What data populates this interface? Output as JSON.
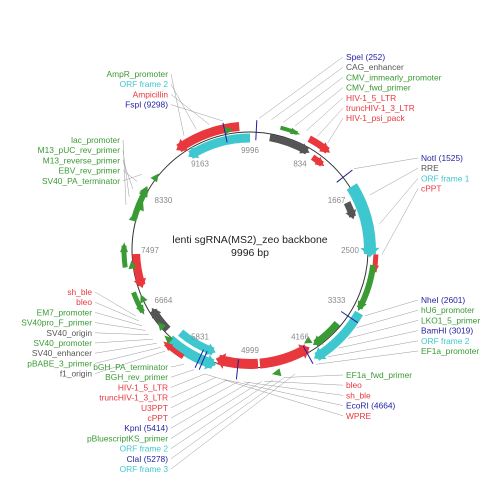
{
  "plasmid": {
    "name": "lenti sgRNA(MS2)_zeo backbone",
    "size_label": "9996 bp",
    "length_bp": 9996
  },
  "ticks": [
    "834",
    "1667",
    "2500",
    "3333",
    "4166",
    "4999",
    "5831",
    "6664",
    "7497",
    "8330",
    "9163",
    "9996"
  ],
  "colors": {
    "green": "#3a9a34",
    "red": "#e8383d",
    "cyan": "#3fc7cf",
    "gray": "#555555",
    "navy": "#1e1ea0",
    "backbone": "#333333",
    "leader": "#9a9a9a"
  },
  "labels": {
    "top_left": [
      {
        "text": "AmpR_promoter",
        "color": "green"
      },
      {
        "text": "ORF frame 2",
        "color": "cyan"
      },
      {
        "text": "Ampicillin",
        "color": "red"
      },
      {
        "text": "FspI (9298)",
        "color": "navy"
      }
    ],
    "top_right": [
      {
        "text": "SpeI (252)",
        "color": "navy"
      },
      {
        "text": "CAG_enhancer",
        "color": "gray"
      },
      {
        "text": "CMV_immearly_promoter",
        "color": "green"
      },
      {
        "text": "CMV_fwd_primer",
        "color": "green"
      },
      {
        "text": "HIV-1_5_LTR",
        "color": "red"
      },
      {
        "text": "truncHIV-1_3_LTR",
        "color": "red"
      },
      {
        "text": "HIV-1_psi_pack",
        "color": "red"
      }
    ],
    "left_upper": [
      {
        "text": "lac_promoter",
        "color": "green"
      },
      {
        "text": "M13_pUC_rev_primer",
        "color": "green"
      },
      {
        "text": "M13_reverse_primer",
        "color": "green"
      },
      {
        "text": "EBV_rev_primer",
        "color": "green"
      },
      {
        "text": "SV40_PA_terminator",
        "color": "green"
      }
    ],
    "right_upper": [
      {
        "text": "NotI (1525)",
        "color": "navy"
      },
      {
        "text": "RRE",
        "color": "gray"
      },
      {
        "text": "ORF frame 1",
        "color": "cyan"
      },
      {
        "text": "cPPT",
        "color": "red"
      }
    ],
    "left_middle": [
      {
        "text": "sh_ble",
        "color": "red"
      },
      {
        "text": "bleo",
        "color": "red"
      },
      {
        "text": "EM7_promoter",
        "color": "green"
      },
      {
        "text": "SV40pro_F_primer",
        "color": "green"
      },
      {
        "text": "SV40_origin",
        "color": "gray"
      },
      {
        "text": "SV40_promoter",
        "color": "green"
      },
      {
        "text": "SV40_enhancer",
        "color": "gray"
      },
      {
        "text": "pBABE_3_primer",
        "color": "green"
      },
      {
        "text": "f1_origin",
        "color": "gray"
      }
    ],
    "right_middle": [
      {
        "text": "NheI (2601)",
        "color": "navy"
      },
      {
        "text": "hU6_promoter",
        "color": "green"
      },
      {
        "text": "LKO1_5_primer",
        "color": "green"
      },
      {
        "text": "BamHI (3019)",
        "color": "navy"
      },
      {
        "text": "ORF frame 2",
        "color": "cyan"
      },
      {
        "text": "EF1a_promoter",
        "color": "green"
      }
    ],
    "left_lower": [
      {
        "text": "bGH_PA_terminator",
        "color": "green"
      },
      {
        "text": "BGH_rev_primer",
        "color": "green"
      },
      {
        "text": "HIV-1_5_LTR",
        "color": "red"
      },
      {
        "text": "truncHIV-1_3_LTR",
        "color": "red"
      },
      {
        "text": "U3PPT",
        "color": "red"
      },
      {
        "text": "cPPT",
        "color": "red"
      },
      {
        "text": "KpnI (5414)",
        "color": "navy"
      },
      {
        "text": "pBluescriptKS_primer",
        "color": "green"
      },
      {
        "text": "ORF frame 2",
        "color": "cyan"
      },
      {
        "text": "ClaI (5278)",
        "color": "navy"
      },
      {
        "text": "ORF frame 3",
        "color": "cyan"
      }
    ],
    "right_lower": [
      {
        "text": "EF1a_fwd_primer",
        "color": "green"
      },
      {
        "text": "bleo",
        "color": "red"
      },
      {
        "text": "sh_ble",
        "color": "red"
      },
      {
        "text": "EcoRI (4664)",
        "color": "navy"
      },
      {
        "text": "WPRE",
        "color": "red"
      }
    ]
  }
}
